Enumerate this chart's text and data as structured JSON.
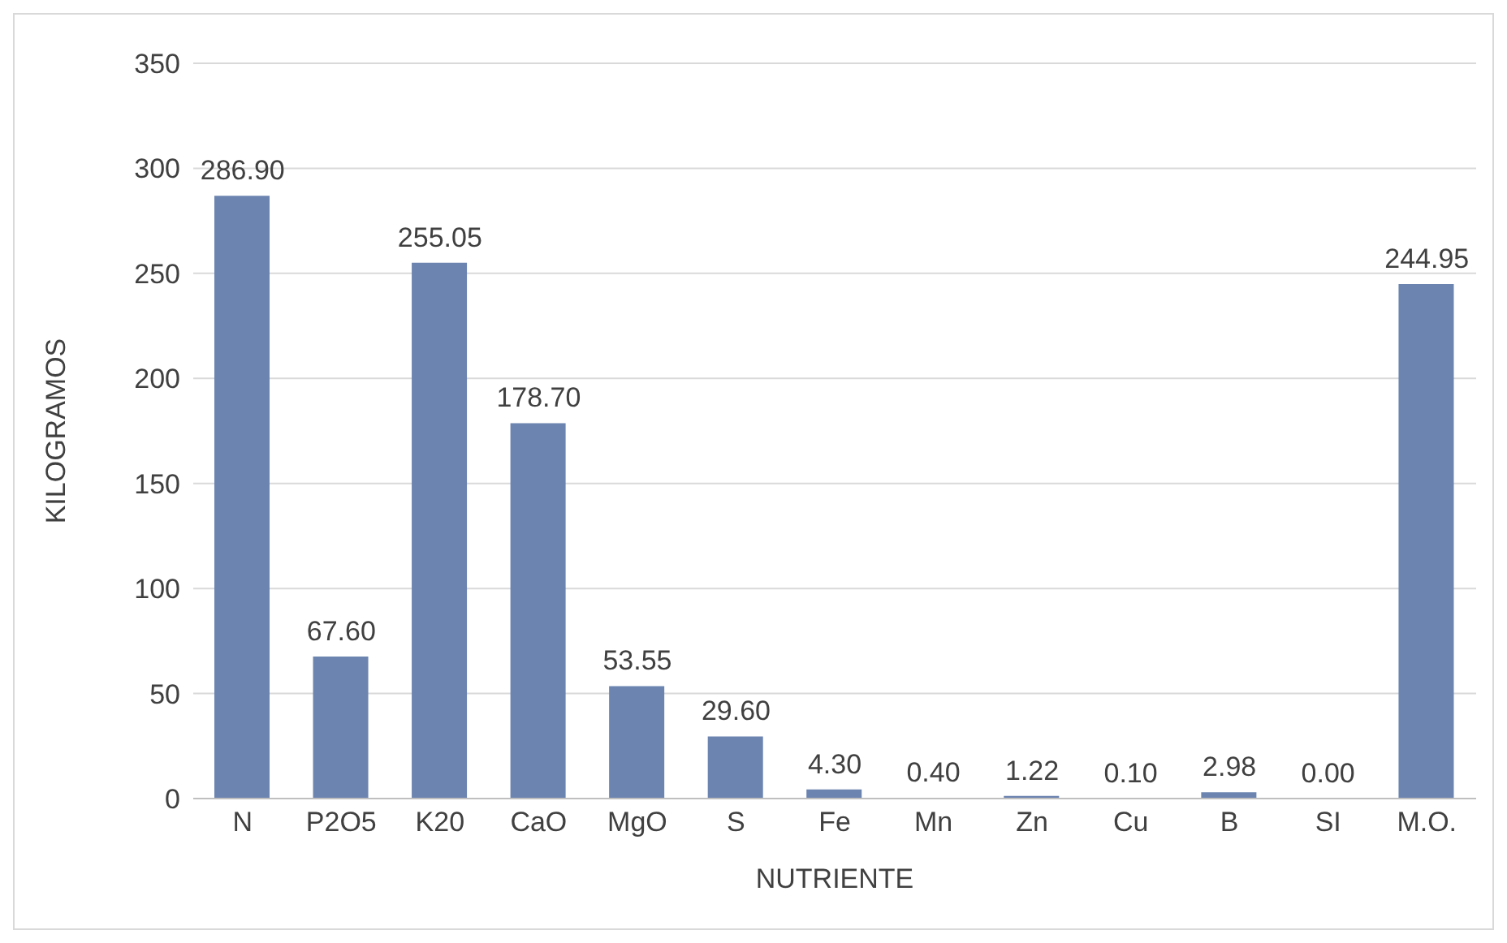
{
  "chart_data": {
    "type": "bar",
    "xlabel": "NUTRIENTE",
    "ylabel": "KILOGRAMOS",
    "categories": [
      "N",
      "P2O5",
      "K20",
      "CaO",
      "MgO",
      "S",
      "Fe",
      "Mn",
      "Zn",
      "Cu",
      "B",
      "SI",
      "M.O."
    ],
    "values": [
      286.9,
      67.6,
      255.05,
      178.7,
      53.55,
      29.6,
      4.3,
      0.4,
      1.22,
      0.1,
      2.98,
      0,
      244.95
    ],
    "value_labels": [
      "286.90",
      "67.60",
      "255.05",
      "178.70",
      "53.55",
      "29.60",
      "4.30",
      "0.40",
      "1.22",
      "0.10",
      "2.98",
      "0.00",
      "244.95"
    ],
    "color": "#6b84b0",
    "ylim": [
      0,
      350
    ],
    "yticks": [
      0,
      50,
      100,
      150,
      200,
      250,
      300,
      350
    ],
    "grid": "y"
  }
}
